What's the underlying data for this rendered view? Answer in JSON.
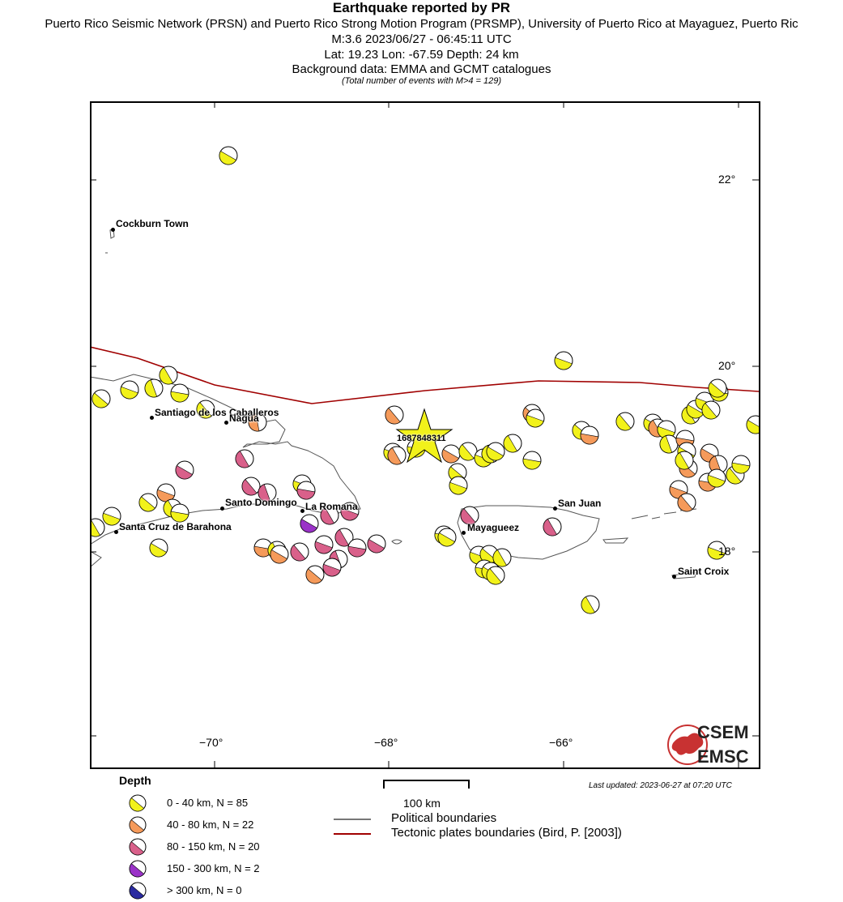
{
  "header": {
    "title": "Earthquake reported by PR",
    "network": "Puerto Rico Seismic Network (PRSN) and Puerto Rico Strong Motion Program (PRSMP), University of Puerto Rico at Mayaguez, Puerto Ric",
    "magnitude_time": "M:3.6 2023/06/27 - 06:45:11 UTC",
    "location": "Lat: 19.23 Lon: -67.59 Depth: 24 km",
    "background": "Background data: EMMA and GCMT catalogues",
    "total": "(Total number of events with M>4 = 129)"
  },
  "map": {
    "event_id": "1687848311",
    "event_lat": 19.23,
    "event_lon": -67.59,
    "lon_ticks": [
      "−70°",
      "−68°",
      "−66°"
    ],
    "lat_ticks": [
      "22°",
      "20°",
      "18°"
    ],
    "cities": [
      {
        "name": "Cockburn Town"
      },
      {
        "name": "Santiago de los Caballeros"
      },
      {
        "name": "Nagua"
      },
      {
        "name": "Santo Domingo"
      },
      {
        "name": "La Romana"
      },
      {
        "name": "Santa Cruz de Barahona"
      },
      {
        "name": "San Juan"
      },
      {
        "name": "Mayagueez"
      },
      {
        "name": "Saint Croix"
      }
    ],
    "colors": {
      "depth_0_40": "#f2f21a",
      "depth_40_80": "#f59a5a",
      "depth_80_150": "#d9608a",
      "depth_150_300": "#9a32c8",
      "depth_300_plus": "#2a2aa0",
      "tectonic_boundary": "#a00000",
      "political_boundary": "#777777",
      "event_star": "#f2f21a"
    }
  },
  "legend": {
    "depth_title": "Depth",
    "depth_items": [
      {
        "label": "0 - 40 km, N = 85",
        "color": "#f2f21a"
      },
      {
        "label": "40 - 80 km, N = 22",
        "color": "#f59a5a"
      },
      {
        "label": "80 - 150 km, N = 20",
        "color": "#d9608a"
      },
      {
        "label": "150 - 300 km, N = 2",
        "color": "#9a32c8"
      },
      {
        "label": "> 300 km, N = 0",
        "color": "#2a2aa0"
      }
    ],
    "scale_label": "100 km",
    "political": "Political boundaries",
    "tectonic": "Tectonic plates boundaries (Bird, P. [2003])",
    "updated": "Last updated: 2023-06-27 at 07:20 UTC"
  },
  "logo": {
    "top": "CSEM",
    "bottom": "EMSC"
  }
}
